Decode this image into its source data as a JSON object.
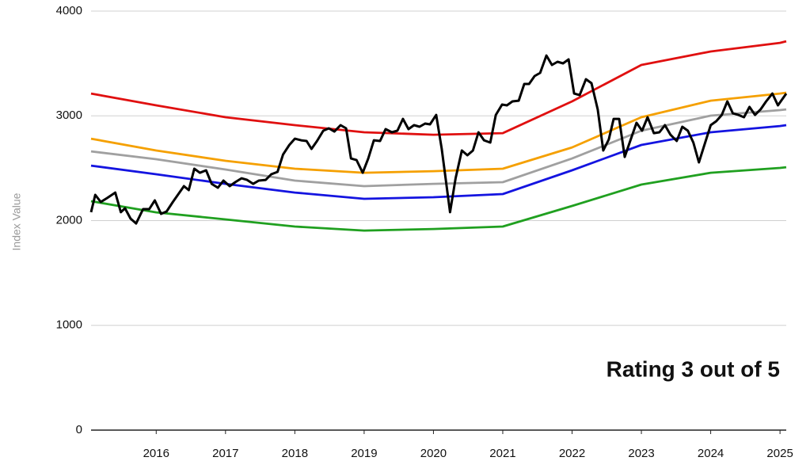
{
  "chart_data": {
    "type": "line",
    "y_label": "Index Value",
    "annotation": "Rating 3 out of 5",
    "xlim": [
      2015.06,
      2025.09
    ],
    "xticks": [
      2016,
      2017,
      2018,
      2019,
      2020,
      2021,
      2022,
      2023,
      2024,
      2025
    ],
    "ylim": [
      0,
      4000
    ],
    "yticks": [
      0,
      1000,
      2000,
      3000,
      4000
    ],
    "grid": true,
    "series": [
      {
        "color": "#e01010",
        "x": [
          2015.06,
          2016,
          2017,
          2018,
          2019,
          2020,
          2021,
          2022,
          2023,
          2024,
          2025,
          2025.09
        ],
        "values": [
          3213,
          3100,
          2987,
          2911,
          2843,
          2820,
          2835,
          3138,
          3486,
          3614,
          3697,
          3712
        ]
      },
      {
        "color": "#f5a000",
        "x": [
          2015.06,
          2016,
          2017,
          2018,
          2019,
          2020,
          2021,
          2022,
          2023,
          2024,
          2025,
          2025.09
        ],
        "values": [
          2782,
          2669,
          2571,
          2495,
          2457,
          2472,
          2495,
          2699,
          2987,
          3145,
          3213,
          3221
        ]
      },
      {
        "color": "#a0a0a0",
        "x": [
          2015.06,
          2016,
          2017,
          2018,
          2019,
          2020,
          2021,
          2022,
          2023,
          2024,
          2025,
          2025.09
        ],
        "values": [
          2661,
          2586,
          2488,
          2382,
          2329,
          2351,
          2367,
          2593,
          2858,
          3002,
          3055,
          3062
        ]
      },
      {
        "color": "#1414e0",
        "x": [
          2015.06,
          2016,
          2017,
          2018,
          2019,
          2020,
          2021,
          2022,
          2023,
          2024,
          2025,
          2025.09
        ],
        "values": [
          2525,
          2442,
          2351,
          2268,
          2208,
          2223,
          2253,
          2480,
          2722,
          2843,
          2903,
          2911
        ]
      },
      {
        "color": "#20a020",
        "x": [
          2015.06,
          2016,
          2017,
          2018,
          2019,
          2020,
          2021,
          2022,
          2023,
          2024,
          2025,
          2025.09
        ],
        "values": [
          2185,
          2079,
          2011,
          1943,
          1905,
          1920,
          1943,
          2140,
          2344,
          2457,
          2503,
          2510
        ]
      },
      {
        "color": "#000000",
        "x": [
          2015.06,
          2015.12,
          2015.2,
          2015.29,
          2015.41,
          2015.49,
          2015.55,
          2015.63,
          2015.71,
          2015.81,
          2015.9,
          2015.98,
          2016.07,
          2016.15,
          2016.24,
          2016.32,
          2016.4,
          2016.47,
          2016.55,
          2016.63,
          2016.72,
          2016.8,
          2016.89,
          2016.97,
          2017.06,
          2017.14,
          2017.23,
          2017.31,
          2017.4,
          2017.48,
          2017.58,
          2017.66,
          2017.75,
          2017.83,
          2017.92,
          2018.0,
          2018.09,
          2018.17,
          2018.24,
          2018.32,
          2018.41,
          2018.49,
          2018.57,
          2018.66,
          2018.74,
          2018.81,
          2018.89,
          2018.98,
          2019.06,
          2019.14,
          2019.23,
          2019.31,
          2019.4,
          2019.48,
          2019.56,
          2019.64,
          2019.72,
          2019.8,
          2019.88,
          2019.95,
          2020.04,
          2020.12,
          2020.24,
          2020.32,
          2020.41,
          2020.49,
          2020.57,
          2020.65,
          2020.73,
          2020.82,
          2020.9,
          2020.99,
          2021.06,
          2021.14,
          2021.23,
          2021.31,
          2021.38,
          2021.46,
          2021.54,
          2021.63,
          2021.71,
          2021.79,
          2021.87,
          2021.95,
          2022.03,
          2022.11,
          2022.2,
          2022.28,
          2022.37,
          2022.45,
          2022.53,
          2022.6,
          2022.68,
          2022.76,
          2022.85,
          2022.93,
          2023.01,
          2023.09,
          2023.18,
          2023.26,
          2023.34,
          2023.42,
          2023.51,
          2023.59,
          2023.67,
          2023.75,
          2023.83,
          2023.92,
          2024.0,
          2024.08,
          2024.16,
          2024.24,
          2024.32,
          2024.4,
          2024.48,
          2024.56,
          2024.64,
          2024.72,
          2024.8,
          2024.89,
          2024.97,
          2025.09
        ],
        "values": [
          2080,
          2246,
          2178,
          2215,
          2268,
          2080,
          2117,
          2019,
          1973,
          2110,
          2110,
          2193,
          2064,
          2087,
          2178,
          2253,
          2329,
          2291,
          2495,
          2457,
          2480,
          2351,
          2314,
          2382,
          2329,
          2367,
          2404,
          2389,
          2351,
          2382,
          2389,
          2442,
          2465,
          2631,
          2722,
          2782,
          2767,
          2760,
          2684,
          2760,
          2858,
          2881,
          2850,
          2911,
          2881,
          2593,
          2578,
          2457,
          2593,
          2767,
          2760,
          2873,
          2843,
          2858,
          2971,
          2873,
          2911,
          2896,
          2926,
          2919,
          3009,
          2684,
          2080,
          2404,
          2669,
          2624,
          2669,
          2843,
          2767,
          2745,
          3009,
          3108,
          3100,
          3138,
          3145,
          3304,
          3304,
          3380,
          3410,
          3576,
          3486,
          3516,
          3501,
          3539,
          3213,
          3198,
          3350,
          3312,
          3062,
          2669,
          2775,
          2971,
          2971,
          2608,
          2782,
          2934,
          2858,
          2987,
          2835,
          2843,
          2911,
          2820,
          2760,
          2896,
          2858,
          2745,
          2556,
          2745,
          2911,
          2949,
          3009,
          3138,
          3024,
          3009,
          2987,
          3085,
          3009,
          3062,
          3138,
          3213,
          3100,
          3213
        ]
      }
    ]
  }
}
